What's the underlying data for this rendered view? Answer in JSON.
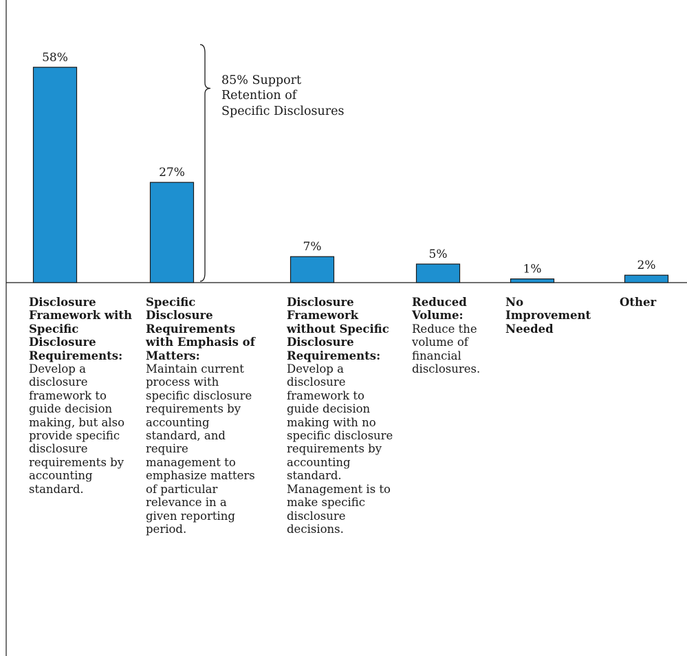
{
  "chart_data": {
    "type": "bar",
    "categories": [
      "Disclosure Framework with Specific Disclosure Requirements:",
      "Specific Disclosure Requirements with Emphasis of Matters:",
      "Disclosure Framework without Specific Disclosure Requirements:",
      "Reduced Volume:",
      "No Improvement Needed",
      "Other"
    ],
    "descriptions": [
      "Develop a disclosure framework to guide decision making, but also provide specific disclosure requirements by accounting standard.",
      "Maintain current process with specific disclosure requirements by accounting standard, and require management to emphasize matters of particular relevance in a given reporting period.",
      "Develop a disclosure framework to guide decision making with no specific disclosure requirements by accounting standard. Management is to make specific disclosure decisions.",
      "Reduce the volume of financial disclosures.",
      "",
      ""
    ],
    "values": [
      58,
      27,
      7,
      5,
      1,
      2
    ],
    "value_labels": [
      "58%",
      "27%",
      "7%",
      "5%",
      "1%",
      "2%"
    ],
    "ylim": [
      0,
      65
    ],
    "grid": false,
    "bar_color": "#1e90d0",
    "annotation": {
      "lines": [
        "85% Support",
        "Retention of",
        "Specific Disclosures"
      ],
      "spans_categories": [
        0,
        1
      ]
    }
  }
}
